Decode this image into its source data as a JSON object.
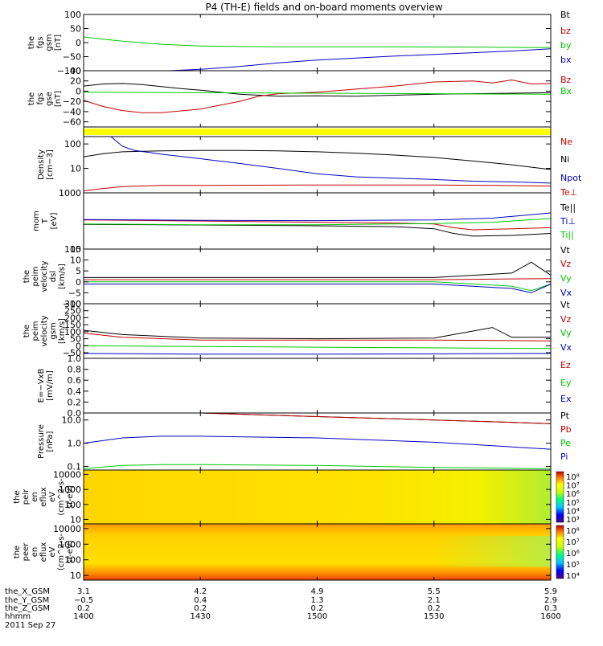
{
  "title": "P4 (TH-E) fields and on-board moments overview",
  "colors": {
    "black": "#000000",
    "red": "#c00000",
    "green": "#00c800",
    "blue": "#0000c0",
    "yellow": "#ffff00"
  },
  "chart_data": [
    {
      "type": "line",
      "id": "fgs_gsm",
      "ylabel": [
        "the",
        "fgs",
        "gsm",
        "[nT]"
      ],
      "ylim": [
        -100,
        100
      ],
      "yticks": [
        "100",
        "50",
        "0",
        "−50",
        "−100"
      ],
      "ytick_values": [
        100,
        50,
        0,
        -50,
        -100
      ],
      "legend": [
        {
          "name": "Bt",
          "color": "#000000"
        },
        {
          "name": "bz",
          "color": "#c00000"
        },
        {
          "name": "by",
          "color": "#00c800"
        },
        {
          "name": "bx",
          "color": "#0000c0"
        }
      ],
      "series": [
        {
          "name": "by",
          "color": "#00c800",
          "x": [
            1400,
            1405,
            1410,
            1420,
            1430,
            1440,
            1450,
            1500,
            1520,
            1540,
            1550,
            1600
          ],
          "y": [
            20,
            12,
            5,
            -6,
            -12,
            -14,
            -15,
            -15,
            -15,
            -16,
            -17,
            -18
          ]
        },
        {
          "name": "bx",
          "color": "#0000c0",
          "x": [
            1422,
            1430,
            1440,
            1450,
            1500,
            1510,
            1520,
            1530,
            1540,
            1550,
            1600
          ],
          "y": [
            -100,
            -95,
            -85,
            -72,
            -62,
            -55,
            -48,
            -42,
            -36,
            -30,
            -22
          ]
        }
      ]
    },
    {
      "type": "line",
      "id": "fgs_gse",
      "ylabel": [
        "the",
        "fgs",
        "gse",
        "[nT]"
      ],
      "ylim": [
        -70,
        40
      ],
      "yticks": [
        "40",
        "20",
        "0",
        "−20",
        "−40",
        "−60"
      ],
      "ytick_values": [
        40,
        20,
        0,
        -20,
        -40,
        -60
      ],
      "legend": [
        {
          "name": "Bz",
          "color": "#c00000"
        },
        {
          "name": "Bx",
          "color": "#00c800"
        }
      ],
      "series": [
        {
          "name": "Bt",
          "color": "#000000",
          "x": [
            1400,
            1405,
            1410,
            1415,
            1420,
            1425,
            1430,
            1435,
            1440,
            1445,
            1450,
            1500,
            1510,
            1520,
            1530,
            1540,
            1550,
            1600
          ],
          "y": [
            10,
            14,
            15,
            13,
            9,
            5,
            2,
            -2,
            -6,
            -8,
            -10,
            -9,
            -10,
            -8,
            -6,
            -5,
            -4,
            -3
          ]
        },
        {
          "name": "Bz",
          "color": "#c00000",
          "x": [
            1400,
            1405,
            1410,
            1415,
            1420,
            1430,
            1440,
            1445,
            1450,
            1500,
            1510,
            1520,
            1530,
            1540,
            1545,
            1550,
            1555,
            1600
          ],
          "y": [
            -18,
            -30,
            -38,
            -42,
            -42,
            -35,
            -20,
            -10,
            -5,
            -2,
            4,
            10,
            18,
            20,
            16,
            22,
            14,
            15
          ]
        },
        {
          "name": "Bx",
          "color": "#00c800",
          "x": [
            1400,
            1430,
            1500,
            1530,
            1600
          ],
          "y": [
            -2,
            -3,
            -4,
            -5,
            -6
          ]
        }
      ]
    },
    {
      "type": "line",
      "id": "density",
      "ylabel": [
        "Density",
        "[cm−3]"
      ],
      "ylog": true,
      "ylim": [
        1,
        200
      ],
      "yticks": [
        "100",
        "10"
      ],
      "ytick_values": [
        100,
        10
      ],
      "legend": [
        {
          "name": "Ne",
          "color": "#c00000"
        },
        {
          "name": "Ni",
          "color": "#000000"
        },
        {
          "name": "Npot",
          "color": "#0000c0"
        }
      ],
      "series": [
        {
          "name": "Ne",
          "color": "#c00000",
          "x": [
            1400,
            1405,
            1410,
            1420,
            1430,
            1500,
            1530,
            1545,
            1600
          ],
          "y": [
            1.2,
            1.5,
            1.8,
            2.0,
            2.0,
            2.1,
            2.1,
            2.0,
            1.9
          ]
        },
        {
          "name": "Ni",
          "color": "#000000",
          "x": [
            1400,
            1405,
            1410,
            1420,
            1430,
            1440,
            1450,
            1500,
            1510,
            1520,
            1530,
            1540,
            1550,
            1600
          ],
          "y": [
            30,
            40,
            48,
            52,
            54,
            54,
            52,
            48,
            42,
            35,
            28,
            20,
            14,
            9
          ]
        },
        {
          "name": "Npot",
          "color": "#0000c0",
          "x": [
            1407,
            1410,
            1413,
            1420,
            1430,
            1440,
            1450,
            1500,
            1510,
            1520,
            1530,
            1540,
            1550,
            1600
          ],
          "y": [
            200,
            80,
            55,
            38,
            25,
            16,
            10,
            6,
            4.5,
            4,
            3.5,
            3,
            2.8,
            2.5
          ]
        }
      ]
    },
    {
      "type": "line",
      "id": "mom_t",
      "ylabel": [
        "mom",
        "T",
        "[eV]"
      ],
      "ylog": true,
      "ylim": [
        100,
        1000
      ],
      "yticks": [
        "1000",
        "100"
      ],
      "ytick_values": [
        1000,
        100
      ],
      "legend": [
        {
          "name": "Te⊥",
          "color": "#c00000"
        },
        {
          "name": "Te||",
          "color": "#000000"
        },
        {
          "name": "Ti⊥",
          "color": "#0000c0"
        },
        {
          "name": "Ti||",
          "color": "#00c800"
        }
      ],
      "series": [
        {
          "name": "Te⊥",
          "color": "#c00000",
          "x": [
            1400,
            1420,
            1440,
            1500,
            1520,
            1530,
            1535,
            1540,
            1550,
            1600
          ],
          "y": [
            330,
            320,
            310,
            300,
            290,
            280,
            240,
            220,
            230,
            240
          ]
        },
        {
          "name": "Te||",
          "color": "#000000",
          "x": [
            1400,
            1420,
            1440,
            1500,
            1520,
            1530,
            1535,
            1540,
            1550,
            1600
          ],
          "y": [
            275,
            270,
            265,
            260,
            250,
            230,
            190,
            170,
            175,
            190
          ]
        },
        {
          "name": "Ti⊥",
          "color": "#0000c0",
          "x": [
            1400,
            1430,
            1500,
            1530,
            1545,
            1600
          ],
          "y": [
            335,
            325,
            320,
            330,
            355,
            440
          ]
        },
        {
          "name": "Ti||",
          "color": "#00c800",
          "x": [
            1400,
            1430,
            1500,
            1530,
            1545,
            1600
          ],
          "y": [
            280,
            270,
            270,
            285,
            300,
            350
          ]
        }
      ]
    },
    {
      "type": "line",
      "id": "peim_dsl",
      "ylabel": [
        "the",
        "peim",
        "velocity",
        "dsl",
        "[km/s]"
      ],
      "ylim": [
        -10,
        15
      ],
      "yticks": [
        "15",
        "10",
        "5",
        "0",
        "−5",
        "−10"
      ],
      "ytick_values": [
        15,
        10,
        5,
        0,
        -5,
        -10
      ],
      "legend": [
        {
          "name": "Vt",
          "color": "#000000"
        },
        {
          "name": "Vz",
          "color": "#c00000"
        },
        {
          "name": "Vy",
          "color": "#00c800"
        },
        {
          "name": "Vx",
          "color": "#0000c0"
        }
      ],
      "series": [
        {
          "name": "Vt",
          "color": "#000000",
          "x": [
            1400,
            1530,
            1540,
            1550,
            1555,
            1600
          ],
          "y": [
            2,
            2,
            3,
            4,
            9,
            3
          ]
        },
        {
          "name": "Vz",
          "color": "#c00000",
          "x": [
            1400,
            1530,
            1600
          ],
          "y": [
            1,
            1,
            1.5
          ]
        },
        {
          "name": "Vy",
          "color": "#00c800",
          "x": [
            1400,
            1530,
            1550,
            1555,
            1600
          ],
          "y": [
            0,
            0,
            -2,
            -4,
            -1
          ]
        },
        {
          "name": "Vx",
          "color": "#0000c0",
          "x": [
            1400,
            1530,
            1550,
            1555,
            1600
          ],
          "y": [
            -1,
            -1,
            -3,
            -5,
            -1
          ]
        }
      ]
    },
    {
      "type": "line",
      "id": "peim_gsm",
      "ylabel": [
        "the",
        "peim",
        "velocity",
        "gsm",
        "[km/s]"
      ],
      "ylim": [
        -90,
        300
      ],
      "yticks": [
        "300",
        "250",
        "200",
        "150",
        "100",
        "50",
        "0",
        "−50"
      ],
      "ytick_values": [
        300,
        250,
        200,
        150,
        100,
        50,
        0,
        -50
      ],
      "legend": [
        {
          "name": "Vt",
          "color": "#000000"
        },
        {
          "name": "Vz",
          "color": "#c00000"
        },
        {
          "name": "Vy",
          "color": "#00c800"
        },
        {
          "name": "Vx",
          "color": "#0000c0"
        }
      ],
      "series": [
        {
          "name": "Vt",
          "color": "#000000",
          "x": [
            1400,
            1410,
            1430,
            1500,
            1530,
            1545,
            1550,
            1600
          ],
          "y": [
            110,
            80,
            55,
            50,
            55,
            130,
            60,
            60
          ]
        },
        {
          "name": "Vz",
          "color": "#c00000",
          "x": [
            1400,
            1410,
            1430,
            1500,
            1530,
            1600
          ],
          "y": [
            90,
            60,
            40,
            40,
            40,
            35
          ]
        },
        {
          "name": "Vy",
          "color": "#00c800",
          "x": [
            1400,
            1430,
            1500,
            1600
          ],
          "y": [
            0,
            -5,
            -10,
            -20
          ]
        },
        {
          "name": "Vx",
          "color": "#0000c0",
          "x": [
            1400,
            1430,
            1500,
            1600
          ],
          "y": [
            -55,
            -60,
            -60,
            -55
          ]
        }
      ]
    },
    {
      "type": "line",
      "id": "efield",
      "ylabel": [
        "E=−VxB",
        "[mV/m]"
      ],
      "ylim": [
        0,
        1
      ],
      "yticks": [
        "1.0",
        "0.8",
        "0.6",
        "0.4",
        "0.2",
        "0.0"
      ],
      "ytick_values": [
        1,
        0.8,
        0.6,
        0.4,
        0.2,
        0
      ],
      "legend": [
        {
          "name": "Ez",
          "color": "#c00000"
        },
        {
          "name": "Ey",
          "color": "#00c800"
        },
        {
          "name": "Ex",
          "color": "#0000c0"
        }
      ],
      "series": []
    },
    {
      "type": "line",
      "id": "pressure",
      "ylabel": [
        "Pressure",
        "[nPa]"
      ],
      "ylog": true,
      "ylim": [
        0.07,
        20
      ],
      "yticks": [
        "10.0",
        "1.0",
        "0.1"
      ],
      "ytick_values": [
        10,
        1,
        0.1
      ],
      "legend": [
        {
          "name": "Pt",
          "color": "#000000"
        },
        {
          "name": "Pb",
          "color": "#c00000"
        },
        {
          "name": "Pe",
          "color": "#00c800"
        },
        {
          "name": "Pi",
          "color": "#0000c0"
        }
      ],
      "series": [
        {
          "name": "Pt",
          "color": "#000000",
          "x": [
            1430,
            1500,
            1530,
            1600
          ],
          "y": [
            20,
            14,
            10,
            7
          ]
        },
        {
          "name": "Pb",
          "color": "#c00000",
          "x": [
            1430,
            1500,
            1530,
            1600
          ],
          "y": [
            20,
            14,
            10,
            7
          ]
        },
        {
          "name": "Pi",
          "color": "#0000c0",
          "x": [
            1400,
            1410,
            1420,
            1430,
            1500,
            1530,
            1600
          ],
          "y": [
            1.0,
            1.7,
            2.0,
            2.0,
            1.7,
            1.1,
            0.55
          ]
        },
        {
          "name": "Pe",
          "color": "#00c800",
          "x": [
            1400,
            1410,
            1420,
            1430,
            1500,
            1530,
            1600
          ],
          "y": [
            0.08,
            0.11,
            0.12,
            0.12,
            0.11,
            0.09,
            0.08
          ]
        }
      ]
    },
    {
      "type": "heatmap",
      "id": "peir_eflux",
      "ylabel": [
        "the",
        "peir",
        "en",
        "eflux",
        "eV",
        "(cm^2-s-",
        "sr-eV)"
      ],
      "ylog": true,
      "ylim": [
        5,
        20000
      ],
      "yticks": [
        "10000",
        "1000",
        "100",
        "10"
      ],
      "ytick_values": [
        10000,
        1000,
        100,
        10
      ],
      "colorbar_ticks": [
        "10⁸",
        "10⁷",
        "10⁶",
        "10⁵",
        "10⁴",
        "10³"
      ]
    },
    {
      "type": "heatmap",
      "id": "peer_eflux",
      "ylabel": [
        "the",
        "peer",
        "en",
        "eflux",
        "eV",
        "(cm^2-s-",
        "sr-eV)"
      ],
      "ylog": true,
      "ylim": [
        5,
        20000
      ],
      "yticks": [
        "10000",
        "1000",
        "100",
        "10"
      ],
      "ytick_values": [
        10000,
        1000,
        100,
        10
      ],
      "colorbar_ticks": [
        "10⁸",
        "10⁷",
        "10⁶",
        "10⁵",
        "10⁴"
      ]
    }
  ],
  "x_axis": {
    "xlim": [
      1400,
      1600
    ],
    "rows": [
      {
        "label": "the_X_GSM",
        "values": [
          "3.1",
          "4.2",
          "4.9",
          "5.5",
          "5.9"
        ]
      },
      {
        "label": "the_Y_GSM",
        "values": [
          "−0.5",
          "0.4",
          "1.3",
          "2.1",
          "2.9"
        ]
      },
      {
        "label": "the_Z_GSM",
        "values": [
          "0.2",
          "0.2",
          "0.2",
          "0.2",
          "0.3"
        ]
      },
      {
        "label": "hhmm",
        "values": [
          "1400",
          "1430",
          "1500",
          "1530",
          "1600"
        ]
      }
    ],
    "tick_times": [
      1400,
      1430,
      1500,
      1530,
      1600
    ],
    "date": "2011 Sep 27"
  }
}
